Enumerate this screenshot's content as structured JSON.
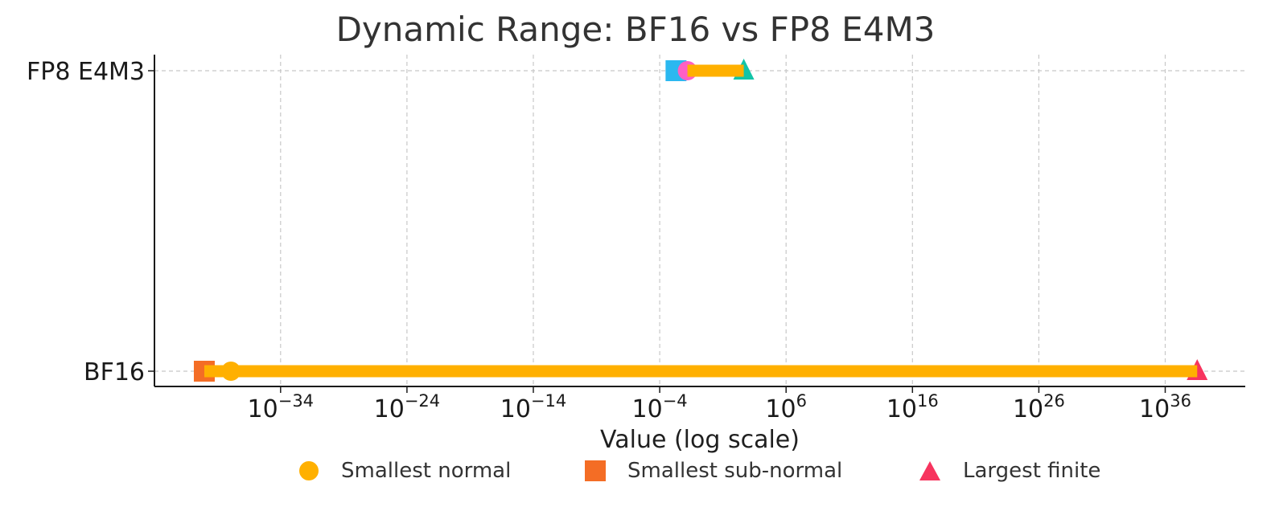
{
  "chart_data": {
    "type": "dumbbell-range",
    "title": "Dynamic Range: BF16 vs FP8 E4M3",
    "xlabel": "Value (log scale)",
    "ylabel": "",
    "xscale": "log",
    "xlim_exponent": [
      -44,
      44
    ],
    "xticks": [
      {
        "exp": -34,
        "label": "10",
        "sup": "−34"
      },
      {
        "exp": -24,
        "label": "10",
        "sup": "−24"
      },
      {
        "exp": -14,
        "label": "10",
        "sup": "−14"
      },
      {
        "exp": -4,
        "label": "10",
        "sup": "−4"
      },
      {
        "exp": 6,
        "label": "10",
        "sup": "6"
      },
      {
        "exp": 16,
        "label": "10",
        "sup": "16"
      },
      {
        "exp": 26,
        "label": "10",
        "sup": "26"
      },
      {
        "exp": 36,
        "label": "10",
        "sup": "36"
      }
    ],
    "grid": true,
    "formats": [
      {
        "name": "FP8 E4M3",
        "smallest_subnormal": 0.001953125,
        "smallest_normal": 0.015625,
        "largest_finite": 448,
        "range_bar": [
          0.015625,
          448
        ],
        "colors": {
          "normal": "#ff5fc4",
          "subnormal": "#2bb8f0",
          "largest": "#12c4a8"
        }
      },
      {
        "name": "BF16",
        "smallest_subnormal": 9.2e-41,
        "smallest_normal": 1.18e-38,
        "largest_finite": 3.39e+38,
        "range_bar": [
          9.2e-41,
          3.39e+38
        ],
        "colors": {
          "normal": "#ffb000",
          "subnormal": "#f46d25",
          "largest": "#f7345e"
        }
      }
    ],
    "bar_color": "#ffb000",
    "legend": {
      "placement": "bottom-center",
      "entries": [
        {
          "label": "Smallest normal",
          "marker": "circle",
          "color": "#ffb000"
        },
        {
          "label": "Smallest sub-normal",
          "marker": "square",
          "color": "#f46d25"
        },
        {
          "label": "Largest finite",
          "marker": "triangle",
          "color": "#f7345e"
        }
      ]
    }
  }
}
